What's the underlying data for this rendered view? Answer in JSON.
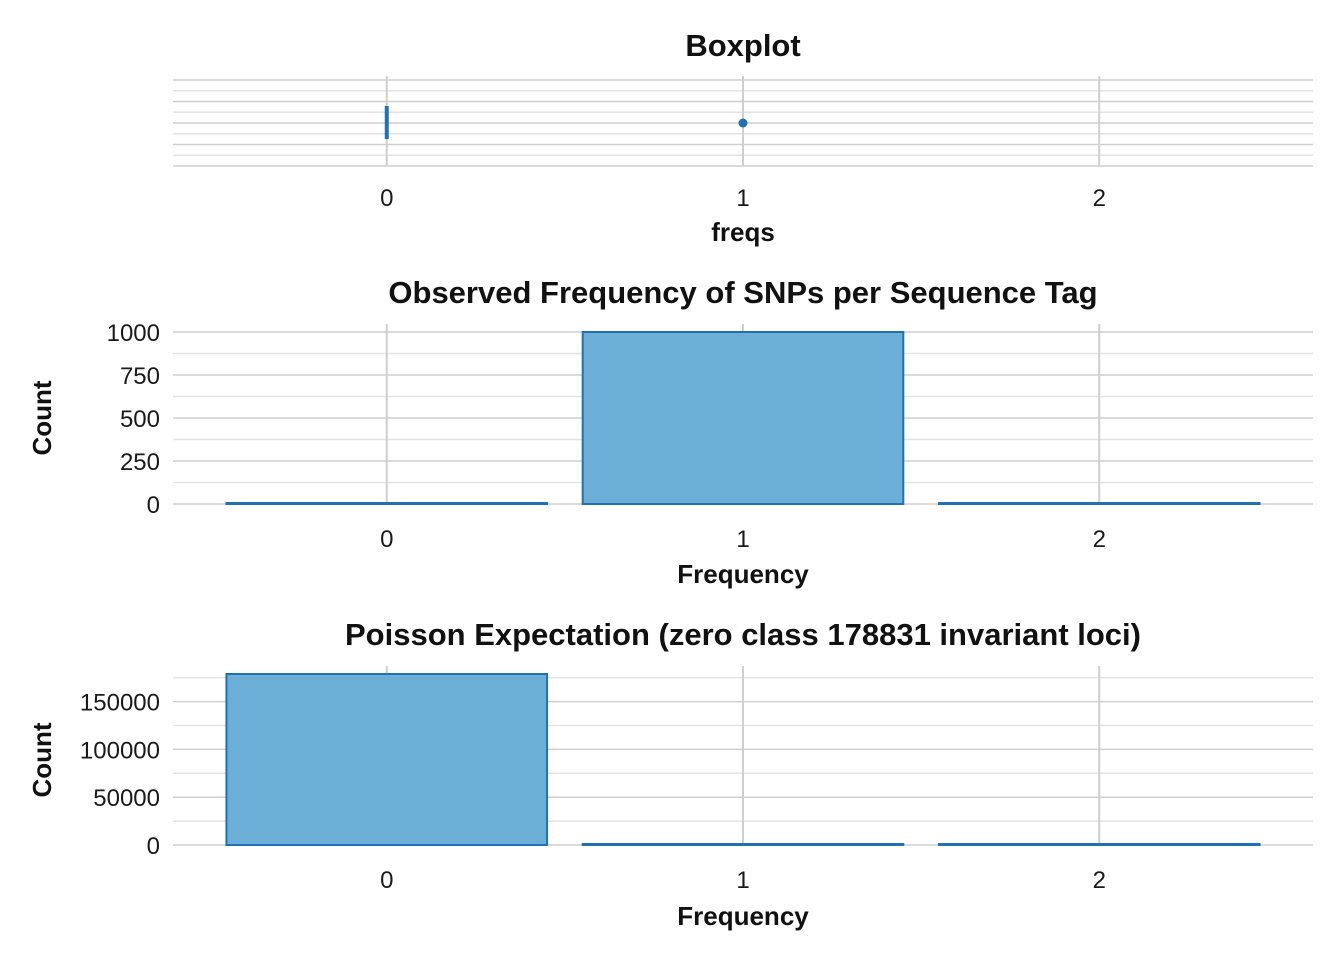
{
  "chart_data": [
    {
      "type": "box",
      "title": "Boxplot",
      "xlabel": "freqs",
      "ylabel": "",
      "x_ticks": [
        "0",
        "1",
        "2"
      ],
      "xlim": [
        -0.6,
        2.6
      ],
      "box": {
        "min": 0,
        "q1": 0,
        "median": 0,
        "q3": 0,
        "max": 0
      },
      "outliers": [
        1
      ],
      "grid": true,
      "color": "#2171b5"
    },
    {
      "type": "bar",
      "title": "Observed Frequency of SNPs per Sequence Tag",
      "xlabel": "Frequency",
      "ylabel": "Count",
      "categories": [
        "0",
        "1",
        "2"
      ],
      "values": [
        0,
        1000,
        3
      ],
      "ylim": [
        0,
        1000
      ],
      "y_ticks": [
        0,
        250,
        500,
        750,
        1000
      ],
      "y_tick_labels": [
        "0",
        "250",
        "500",
        "750",
        "1000"
      ],
      "grid": true,
      "fill": "#6baed6",
      "stroke": "#2171b5"
    },
    {
      "type": "bar",
      "title": "Poisson Expectation (zero class 178831 invariant loci)",
      "xlabel": "Frequency",
      "ylabel": "Count",
      "categories": [
        "0",
        "1",
        "2"
      ],
      "values": [
        178831,
        1000,
        3
      ],
      "ylim": [
        0,
        178831
      ],
      "y_ticks": [
        0,
        50000,
        100000,
        150000
      ],
      "y_tick_labels": [
        "0",
        "50000",
        "100000",
        "150000"
      ],
      "grid": true,
      "fill": "#6baed6",
      "stroke": "#2171b5"
    }
  ]
}
